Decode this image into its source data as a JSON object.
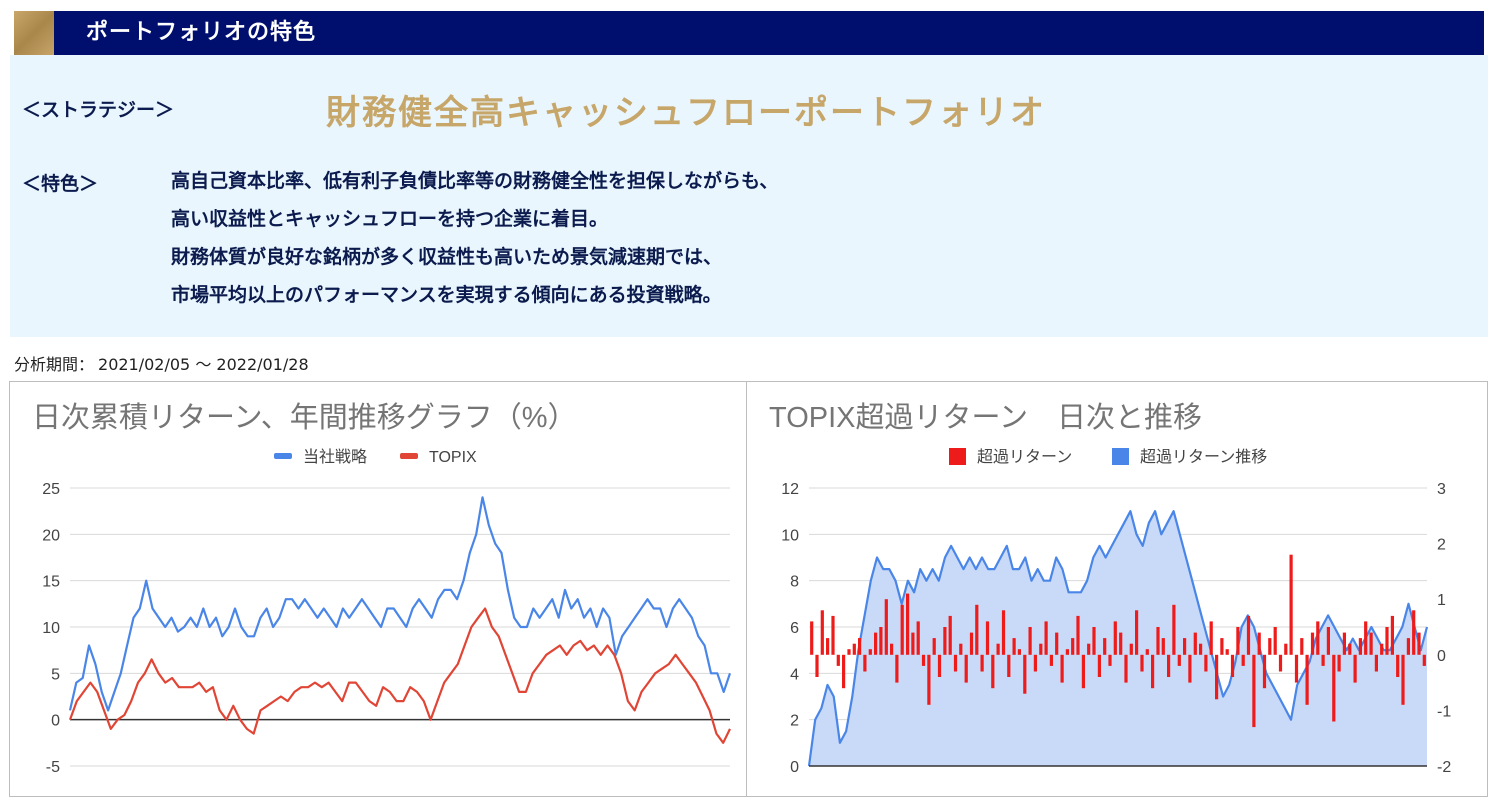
{
  "header": {
    "title": "ポートフォリオの特色"
  },
  "strategy": {
    "label": "＜ストラテジー＞",
    "name": "財務健全高キャッシュフローポートフォリオ"
  },
  "features": {
    "label": "＜特色＞",
    "lines": [
      "高自己資本比率、低有利子負債比率等の財務健全性を担保しながらも、",
      "高い収益性とキャッシュフローを持つ企業に着目。",
      "財務体質が良好な銘柄が多く収益性も高いため景気減速期では、",
      "市場平均以上のパフォーマンスを実現する傾向にある投資戦略。"
    ]
  },
  "period": {
    "label": "分析期間：",
    "value": "2021/02/05 〜 2022/01/28"
  },
  "colors": {
    "strategy": "#4a86e8",
    "topix": "#e04535",
    "excess_bar": "#ee1b1b",
    "trend_fill": "#c9daf8",
    "trend_line": "#4a86e8"
  },
  "chart_data": [
    {
      "type": "line",
      "title": "日次累積リターン、年間推移グラフ（%）",
      "legend_position": "top",
      "ylim": [
        -5,
        25
      ],
      "yticks": [
        -5,
        0,
        5,
        10,
        15,
        20,
        25
      ],
      "grid": true,
      "series": [
        {
          "name": "当社戦略",
          "color": "#4a86e8",
          "values": [
            1,
            4,
            4.5,
            8,
            6,
            3,
            1,
            3,
            5,
            8,
            11,
            12,
            15,
            12,
            11,
            10,
            11,
            9.5,
            10,
            11,
            10,
            12,
            10,
            11,
            9,
            10,
            12,
            10,
            9,
            9,
            11,
            12,
            10,
            11,
            13,
            13,
            12,
            13,
            12,
            11,
            12,
            11,
            10,
            12,
            11,
            12,
            13,
            12,
            11,
            10,
            12,
            12,
            11,
            10,
            12,
            13,
            12,
            11,
            13,
            14,
            14,
            13,
            15,
            18,
            20,
            24,
            21,
            19,
            18,
            14,
            11,
            10,
            10,
            12,
            11,
            12,
            13,
            11,
            14,
            12,
            13,
            11,
            12,
            10,
            12,
            11,
            7,
            9,
            10,
            11,
            12,
            13,
            12,
            12,
            10,
            12,
            13,
            12,
            11,
            9,
            8,
            5,
            5,
            3,
            5
          ]
        },
        {
          "name": "TOPIX",
          "color": "#e04535",
          "values": [
            0,
            2,
            3,
            4,
            3,
            1,
            -1,
            0,
            0.5,
            2,
            4,
            5,
            6.5,
            5,
            4,
            4.5,
            3.5,
            3.5,
            3.5,
            4,
            3,
            3.5,
            1,
            0,
            1.5,
            0,
            -1,
            -1.5,
            1,
            1.5,
            2,
            2.5,
            2,
            3,
            3.5,
            3.5,
            4,
            3.5,
            4,
            3,
            2,
            4,
            4,
            3,
            2,
            1.5,
            3.5,
            3,
            2,
            2,
            3.5,
            3,
            2,
            0,
            2,
            4,
            5,
            6,
            8,
            10,
            11,
            12,
            10,
            9,
            7,
            5,
            3,
            3,
            5,
            6,
            7,
            7.5,
            8,
            7,
            8,
            8.5,
            7.5,
            8,
            7,
            8,
            7,
            5,
            2,
            1,
            3,
            4,
            5,
            5.5,
            6,
            7,
            6,
            5,
            4,
            2.5,
            1,
            -1.5,
            -2.5,
            -1
          ]
        }
      ]
    },
    {
      "type": "bar",
      "title": "TOPIX超過リターン　日次と推移",
      "legend_position": "top",
      "grid": true,
      "ylim_left": [
        0,
        12
      ],
      "yticks_left": [
        0,
        2,
        4,
        6,
        8,
        10,
        12
      ],
      "ylim_right": [
        -2,
        3
      ],
      "yticks_right": [
        -2,
        -1,
        0,
        1,
        2,
        3
      ],
      "series": [
        {
          "name": "超過リターン",
          "type": "bar",
          "axis": "right",
          "color": "#ee1b1b",
          "values": [
            0.6,
            -0.4,
            0.8,
            0.3,
            0.7,
            -0.2,
            -0.6,
            0.1,
            0.2,
            0.3,
            -0.3,
            0.1,
            0.4,
            0.5,
            1.0,
            0.2,
            -0.5,
            0.9,
            1.1,
            0.4,
            0.6,
            -0.2,
            -0.9,
            0.3,
            -0.4,
            0.5,
            0.7,
            -0.3,
            0.2,
            -0.5,
            0.4,
            0.9,
            -0.3,
            0.6,
            -0.6,
            0.2,
            0.8,
            -0.4,
            0.3,
            0.1,
            -0.7,
            0.5,
            -0.3,
            0.2,
            0.6,
            -0.2,
            0.4,
            -0.5,
            0.1,
            0.3,
            0.7,
            -0.6,
            0.2,
            0.5,
            -0.4,
            0.3,
            -0.2,
            0.6,
            0.4,
            -0.5,
            0.2,
            0.8,
            -0.3,
            0.1,
            -0.6,
            0.5,
            0.3,
            -0.4,
            0.9,
            -0.2,
            0.3,
            -0.5,
            0.4,
            0.2,
            -0.3,
            0.6,
            -0.8,
            0.3,
            0.1,
            -0.4,
            0.5,
            -0.2,
            0.7,
            -1.3,
            0.4,
            -0.6,
            0.3,
            0.5,
            -0.3,
            0.2,
            1.8,
            -0.5,
            0.3,
            -0.9,
            0.4,
            0.6,
            -0.2,
            0.5,
            -1.2,
            -0.3,
            0.4,
            0.2,
            -0.5,
            0.3,
            0.6,
            0.4,
            -0.3,
            0.2,
            0.5,
            0.7,
            -0.4,
            -0.9,
            0.3,
            0.8,
            0.4,
            -0.2
          ]
        },
        {
          "name": "超過リターン推移",
          "type": "area",
          "axis": "left",
          "color": "#4a86e8",
          "values": [
            0,
            2,
            2.5,
            3.5,
            3,
            1,
            1.5,
            3,
            5,
            6.5,
            8,
            9,
            8.5,
            8.5,
            8,
            7,
            8,
            7.5,
            8.5,
            8,
            8.5,
            8,
            9,
            9.5,
            9,
            8.5,
            9,
            8.5,
            9,
            8.5,
            8.5,
            9,
            9.5,
            8.5,
            8.5,
            9,
            8,
            8.5,
            8,
            8,
            9,
            8.5,
            7.5,
            7.5,
            7.5,
            8,
            9,
            9.5,
            9,
            9.5,
            10,
            10.5,
            11,
            10,
            9.5,
            10.5,
            11,
            10,
            10.5,
            11,
            10,
            9,
            8,
            7,
            6,
            5,
            4,
            3,
            3.5,
            4.5,
            6,
            6.5,
            6,
            5,
            4,
            3.5,
            3,
            2.5,
            2,
            3.5,
            4,
            4.5,
            5.5,
            6,
            6.5,
            6,
            5.5,
            5,
            5.5,
            5,
            5.5,
            6,
            5.5,
            5,
            5,
            5.5,
            6,
            7,
            6,
            5,
            6
          ]
        }
      ]
    }
  ]
}
